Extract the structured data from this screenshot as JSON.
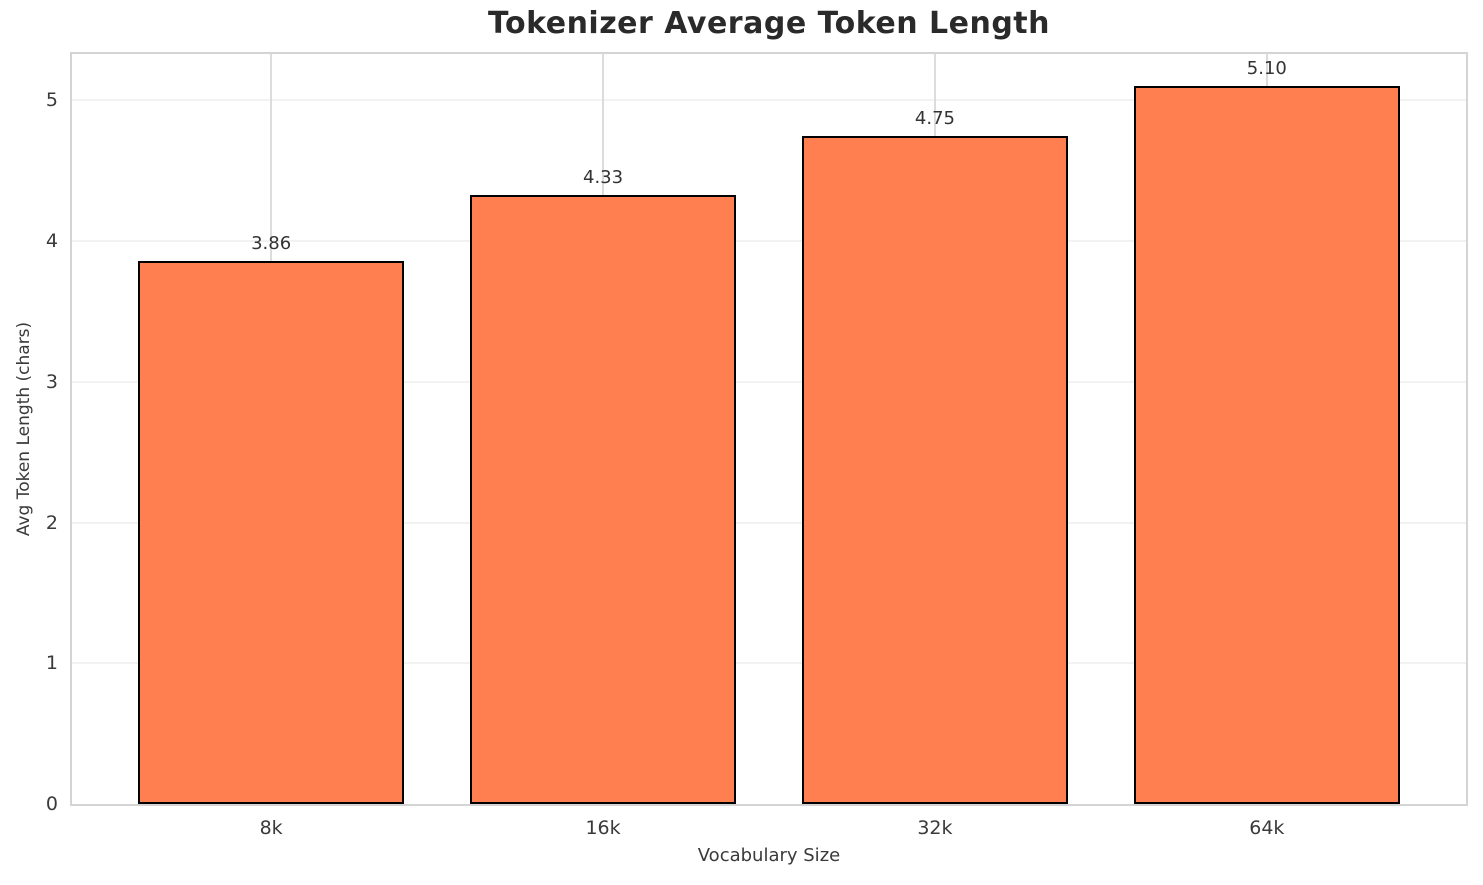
{
  "title": "Tokenizer Average Token Length",
  "chart_data": {
    "type": "bar",
    "title": "Tokenizer Average Token Length",
    "xlabel": "Vocabulary Size",
    "ylabel": "Avg Token Length (chars)",
    "categories": [
      "8k",
      "16k",
      "32k",
      "64k"
    ],
    "values": [
      3.86,
      4.33,
      4.75,
      5.1
    ],
    "value_labels": [
      "3.86",
      "4.33",
      "4.75",
      "5.10"
    ],
    "yticks": [
      0,
      1,
      2,
      3,
      4,
      5
    ],
    "ylim": [
      0,
      5.33
    ],
    "xlim": [
      -0.6,
      3.6
    ],
    "bar_width": 0.8,
    "grid": true,
    "legend": "none",
    "bar_color": "#ff7f50",
    "bar_edge_color": "#000000",
    "grid_color_horizontal": "#f2f2f2",
    "grid_color_vertical": "#dcdcdc",
    "spine_color": "#d4d4d4"
  }
}
